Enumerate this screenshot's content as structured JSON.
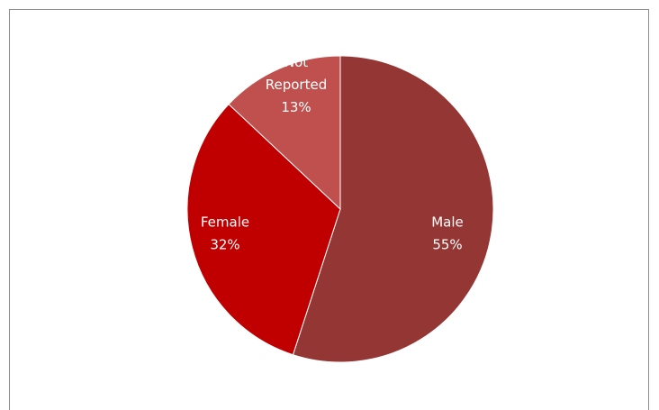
{
  "chart_data": {
    "type": "pie",
    "slices": [
      {
        "label": "Male",
        "percent_label": "55%",
        "value": 55,
        "color": "#943634"
      },
      {
        "label": "Female",
        "percent_label": "32%",
        "value": 32,
        "color": "#c00000"
      },
      {
        "label": "Not Reported",
        "label_lines": [
          "Not",
          "Reported"
        ],
        "percent_label": "13%",
        "value": 13,
        "color": "#c0504d"
      }
    ],
    "start_angle_deg": 0,
    "direction": "clockwise",
    "legend": "none",
    "data_labels": "inside"
  }
}
